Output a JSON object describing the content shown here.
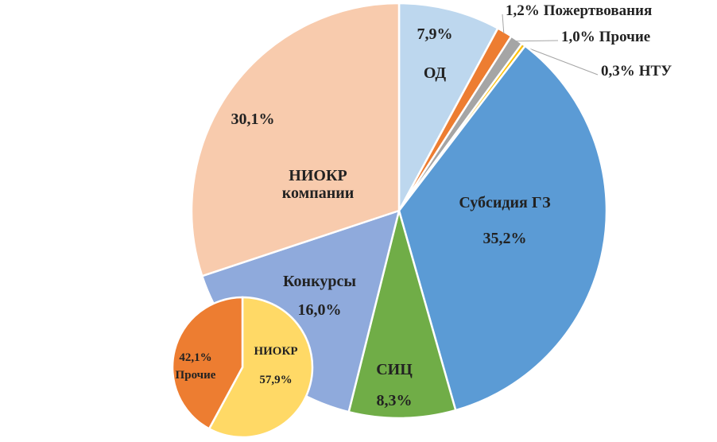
{
  "chart_data": [
    {
      "type": "pie",
      "categories": [
        "ОД",
        "Пожертвования",
        "Прочие",
        "НТУ",
        "Субсидия ГЗ",
        "СИЦ",
        "Конкурсы",
        "НИОКР компании"
      ],
      "values": [
        7.9,
        1.2,
        1.0,
        0.3,
        35.2,
        8.3,
        16.0,
        30.1
      ],
      "value_labels": [
        "7,9%",
        "1,2%",
        "1,0%",
        "0,3%",
        "35,2%",
        "8,3%",
        "16,0%",
        "30,1%"
      ],
      "colors": [
        "#bdd7ee",
        "#ed7d31",
        "#a5a5a5",
        "#ffc000",
        "#5b9bd5",
        "#70ad47",
        "#8faadc",
        "#f8cbad"
      ]
    },
    {
      "type": "pie",
      "categories": [
        "НИОКР",
        "Прочие"
      ],
      "values": [
        57.9,
        42.1
      ],
      "value_labels": [
        "57,9%",
        "42,1%"
      ],
      "colors": [
        "#ffd966",
        "#ed7d31"
      ]
    }
  ]
}
